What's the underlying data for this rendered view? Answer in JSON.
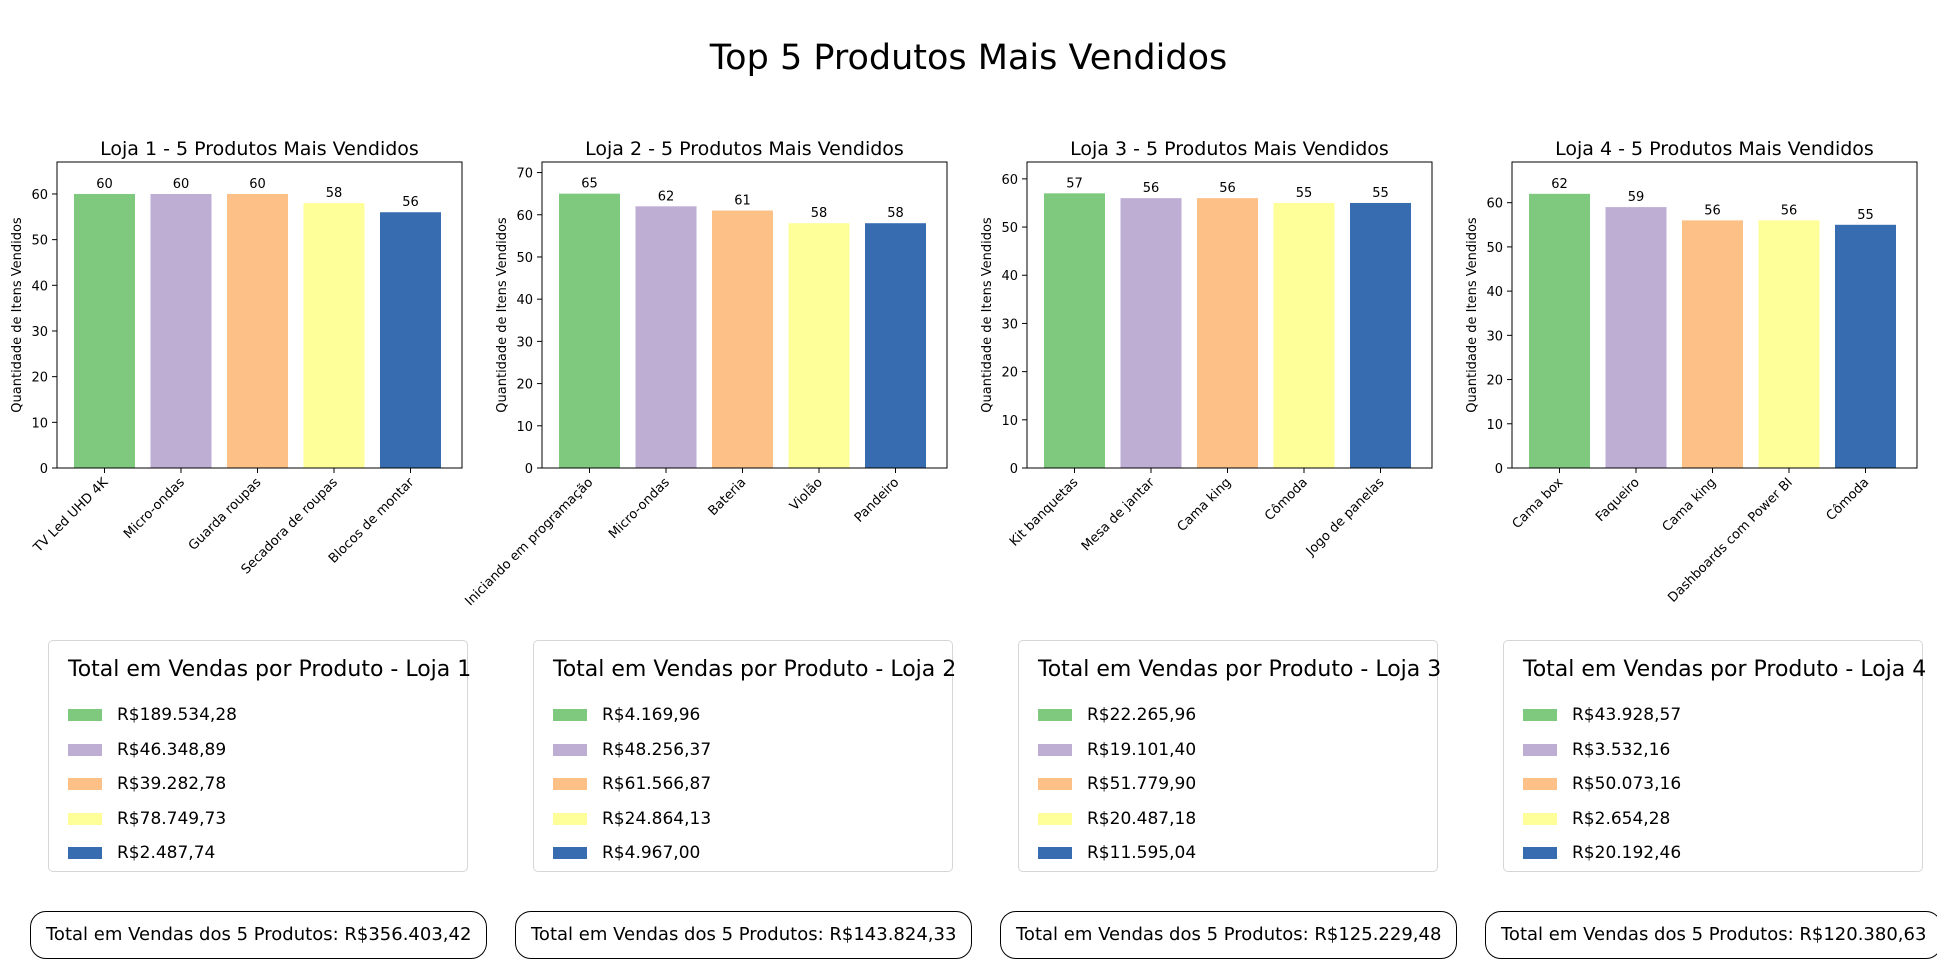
{
  "page": {
    "title": "Top 5 Produtos Mais Vendidos"
  },
  "colors": [
    "#7fc97f",
    "#beaed4",
    "#fdc086",
    "#ffff99",
    "#386cb0"
  ],
  "chart_data": [
    {
      "type": "bar",
      "title": "Loja 1 - 5 Produtos Mais Vendidos",
      "ylabel": "Quantidade de Itens Vendidos",
      "xlabel": "",
      "categories": [
        "TV Led UHD 4K",
        "Micro-ondas",
        "Guarda roupas",
        "Secadora de roupas",
        "Blocos de montar"
      ],
      "values": [
        60,
        60,
        60,
        58,
        56
      ],
      "ylim": [
        0,
        67
      ],
      "yticks": [
        0,
        10,
        20,
        30,
        40,
        50,
        60
      ],
      "legend": {
        "title": "Total em Vendas por Produto - Loja 1",
        "entries": [
          "R$189.534,28",
          "R$46.348,89",
          "R$39.282,78",
          "R$78.749,73",
          "R$2.487,74"
        ]
      },
      "total": "Total em Vendas dos 5 Produtos: R$356.403,42"
    },
    {
      "type": "bar",
      "title": "Loja 2 - 5 Produtos Mais Vendidos",
      "ylabel": "Quantidade de Itens Vendidos",
      "xlabel": "",
      "categories": [
        "Iniciando em programação",
        "Micro-ondas",
        "Bateria",
        "Violão",
        "Pandeiro"
      ],
      "values": [
        65,
        62,
        61,
        58,
        58
      ],
      "ylim": [
        0,
        72.5
      ],
      "yticks": [
        0,
        10,
        20,
        30,
        40,
        50,
        60,
        70
      ],
      "legend": {
        "title": "Total em Vendas por Produto - Loja 2",
        "entries": [
          "R$4.169,96",
          "R$48.256,37",
          "R$61.566,87",
          "R$24.864,13",
          "R$4.967,00"
        ]
      },
      "total": "Total em Vendas dos 5 Produtos: R$143.824,33"
    },
    {
      "type": "bar",
      "title": "Loja 3 - 5 Produtos Mais Vendidos",
      "ylabel": "Quantidade de Itens Vendidos",
      "xlabel": "",
      "categories": [
        "Kit banquetas",
        "Mesa de jantar",
        "Cama king",
        "Cômoda",
        "Jogo de panelas"
      ],
      "values": [
        57,
        56,
        56,
        55,
        55
      ],
      "ylim": [
        0,
        63.5
      ],
      "yticks": [
        0,
        10,
        20,
        30,
        40,
        50,
        60
      ],
      "legend": {
        "title": "Total em Vendas por Produto - Loja 3",
        "entries": [
          "R$22.265,96",
          "R$19.101,40",
          "R$51.779,90",
          "R$20.487,18",
          "R$11.595,04"
        ]
      },
      "total": "Total em Vendas dos 5 Produtos: R$125.229,48"
    },
    {
      "type": "bar",
      "title": "Loja 4 - 5 Produtos Mais Vendidos",
      "ylabel": "Quantidade de Itens Vendidos",
      "xlabel": "",
      "categories": [
        "Cama box",
        "Faqueiro",
        "Cama king",
        "Dashboards com Power BI",
        "Cômoda"
      ],
      "values": [
        62,
        59,
        56,
        56,
        55
      ],
      "ylim": [
        0,
        69.2
      ],
      "yticks": [
        0,
        10,
        20,
        30,
        40,
        50,
        60
      ],
      "legend": {
        "title": "Total em Vendas por Produto - Loja 4",
        "entries": [
          "R$43.928,57",
          "R$3.532,16",
          "R$50.073,16",
          "R$2.654,28",
          "R$20.192,46"
        ]
      },
      "total": "Total em Vendas dos 5 Produtos: R$120.380,63"
    }
  ]
}
